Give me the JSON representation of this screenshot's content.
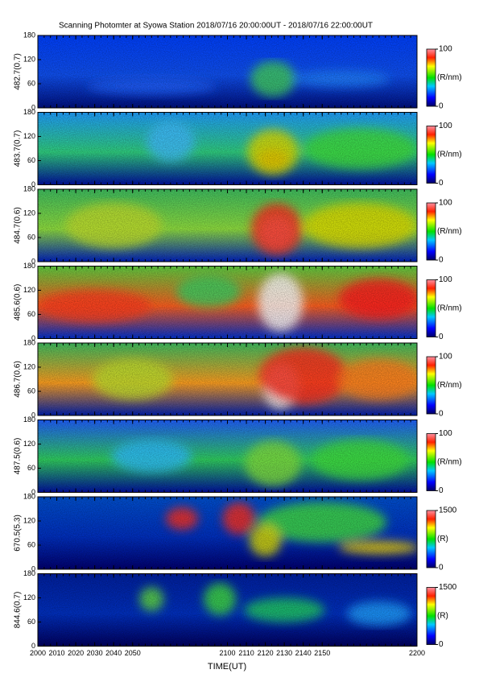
{
  "figure": {
    "title": "Scanning Photomter at Syowa Station  2018/07/16 20:00:00UT - 2018/07/16 22:00:00UT",
    "xlabel": "TIME(UT)",
    "xticks": [
      "2000",
      "2010",
      "2020",
      "2030",
      "2040",
      "2050",
      "2100",
      "2110",
      "2120",
      "2130",
      "2140",
      "2150",
      "2200"
    ],
    "panels": [
      {
        "ylabel": "482.7(0.7)",
        "yticks": [
          0,
          60,
          120,
          180
        ],
        "colorbar": {
          "ticks": [
            0,
            100
          ],
          "label": "(R/nm)"
        }
      },
      {
        "ylabel": "483.7(0.7)",
        "yticks": [
          0,
          60,
          120,
          180
        ],
        "colorbar": {
          "ticks": [
            0,
            100
          ],
          "label": "(R/nm)"
        }
      },
      {
        "ylabel": "484.7(0.6)",
        "yticks": [
          0,
          60,
          120,
          180
        ],
        "colorbar": {
          "ticks": [
            0,
            100
          ],
          "label": "(R/nm)"
        }
      },
      {
        "ylabel": "485.6(0.6)",
        "yticks": [
          0,
          60,
          120,
          180
        ],
        "colorbar": {
          "ticks": [
            0,
            100
          ],
          "label": "(R/nm)"
        }
      },
      {
        "ylabel": "486.7(0.6)",
        "yticks": [
          0,
          60,
          120,
          180
        ],
        "colorbar": {
          "ticks": [
            0,
            100
          ],
          "label": "(R/nm)"
        }
      },
      {
        "ylabel": "487.5(0.6)",
        "yticks": [
          0,
          60,
          120,
          180
        ],
        "colorbar": {
          "ticks": [
            0,
            100
          ],
          "label": "(R/nm)"
        }
      },
      {
        "ylabel": "670.5(5.3)",
        "yticks": [
          0,
          60,
          120,
          180
        ],
        "colorbar": {
          "ticks": [
            0,
            1500
          ],
          "label": "(R)"
        }
      },
      {
        "ylabel": "844.6(0.7)",
        "yticks": [
          0,
          60,
          120,
          180
        ],
        "colorbar": {
          "ticks": [
            0,
            1500
          ],
          "label": "(R)"
        }
      }
    ]
  }
}
